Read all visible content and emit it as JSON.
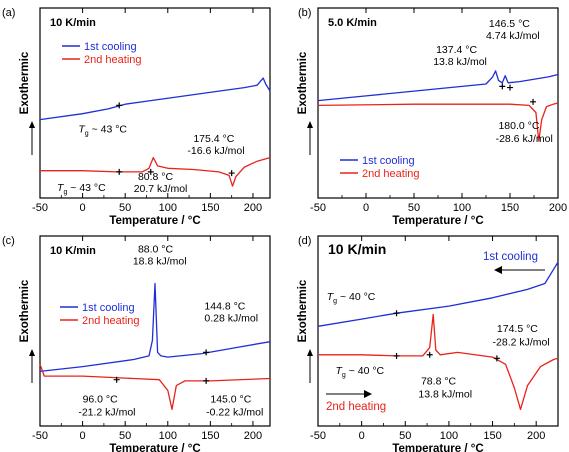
{
  "figure": {
    "panel_letters": [
      "(a)",
      "(b)",
      "(c)",
      "(d)"
    ]
  },
  "chart_data": [
    {
      "type": "line",
      "panel": "(a)",
      "rate_label": "10 K/min",
      "xlabel": "Temperature / °C",
      "ylabel": "Exothermic",
      "xlim": [
        -50,
        220
      ],
      "xticks": [
        -50,
        0,
        50,
        100,
        150,
        200
      ],
      "legend": "top-left",
      "series": [
        {
          "name": "1st cooling",
          "color": "#1f2fd6",
          "x": [
            -50,
            0,
            30,
            50,
            80,
            120,
            160,
            190,
            205,
            212,
            215,
            220
          ],
          "y": [
            3.3,
            3.55,
            3.75,
            3.95,
            4.1,
            4.3,
            4.5,
            4.65,
            4.75,
            5.05,
            4.8,
            4.5
          ]
        },
        {
          "name": "2nd heating",
          "color": "#e8231c",
          "x": [
            -50,
            0,
            40,
            70,
            78,
            83,
            88,
            100,
            130,
            160,
            172,
            176,
            180,
            190,
            205,
            220
          ],
          "y": [
            1.15,
            1.15,
            1.1,
            1.1,
            1.25,
            1.7,
            1.35,
            1.25,
            1.2,
            1.1,
            0.95,
            0.5,
            0.9,
            1.3,
            1.55,
            1.7
          ]
        }
      ],
      "annotations": [
        {
          "text": "T",
          "sub": "g",
          "rest": " ~ 43 °C",
          "x": -5,
          "y": 2.75
        },
        {
          "text": "T",
          "sub": "g",
          "rest": " ~ 43 °C",
          "x": -30,
          "y": 0.3
        },
        {
          "text": "175.4 °C",
          "x": 130,
          "y": 2.35
        },
        {
          "text": "-16.6 kJ/mol",
          "x": 123,
          "y": 1.85
        },
        {
          "text": "80.8 °C",
          "x": 65,
          "y": 0.75
        },
        {
          "text": "20.7 kJ/mol",
          "x": 60,
          "y": 0.25
        }
      ],
      "markers": [
        {
          "x": 43,
          "y": 3.9
        },
        {
          "x": 43,
          "y": 1.1
        },
        {
          "x": 80,
          "y": 1.1
        },
        {
          "x": 175,
          "y": 1.05
        }
      ]
    },
    {
      "type": "line",
      "panel": "(b)",
      "rate_label": "5.0 K/min",
      "xlabel": "Temperature / °C",
      "ylabel": "Exothermic",
      "xlim": [
        -50,
        200
      ],
      "xticks": [
        -50,
        0,
        50,
        100,
        150,
        200
      ],
      "legend": "bottom-left",
      "series": [
        {
          "name": "1st cooling",
          "color": "#1f2fd6",
          "x": [
            -50,
            0,
            50,
            100,
            125,
            132,
            135,
            138,
            142,
            145,
            148,
            160,
            190,
            200
          ],
          "y": [
            4.1,
            4.3,
            4.5,
            4.7,
            4.8,
            5.1,
            5.35,
            4.95,
            4.85,
            5.15,
            4.85,
            4.9,
            5.1,
            5.2
          ]
        },
        {
          "name": "2nd heating",
          "color": "#e8231c",
          "x": [
            -50,
            50,
            100,
            150,
            170,
            177,
            180,
            183,
            188,
            195,
            200
          ],
          "y": [
            3.9,
            3.95,
            3.95,
            3.95,
            3.9,
            3.6,
            2.4,
            3.3,
            3.85,
            3.95,
            4.0
          ]
        }
      ],
      "annotations": [
        {
          "text": "146.5 °C",
          "x": 128,
          "y": 7.2
        },
        {
          "text": "4.74 kJ/mol",
          "x": 125,
          "y": 6.7
        },
        {
          "text": "137.4 °C",
          "x": 73,
          "y": 6.1
        },
        {
          "text": "13.8 kJ/mol",
          "x": 70,
          "y": 5.6
        },
        {
          "text": "180.0 °C",
          "x": 138,
          "y": 2.9
        },
        {
          "text": "-28.6 kJ/mol",
          "x": 135,
          "y": 2.35
        }
      ],
      "markers": [
        {
          "x": 142,
          "y": 4.7
        },
        {
          "x": 150,
          "y": 4.65
        },
        {
          "x": 174,
          "y": 4.05
        }
      ]
    },
    {
      "type": "line",
      "panel": "(c)",
      "rate_label": "10 K/min",
      "xlabel": "Temperature / °C",
      "ylabel": "Exothermic",
      "xlim": [
        -50,
        220
      ],
      "xticks": [
        -50,
        0,
        50,
        100,
        150,
        200
      ],
      "legend": "middle-left",
      "series": [
        {
          "name": "1st cooling",
          "color": "#1f2fd6",
          "x": [
            -50,
            0,
            60,
            78,
            82,
            85,
            88,
            92,
            100,
            140,
            180,
            220
          ],
          "y": [
            2.3,
            2.5,
            2.8,
            2.95,
            3.6,
            6.0,
            3.1,
            2.95,
            2.9,
            3.05,
            3.3,
            3.55
          ]
        },
        {
          "name": "2nd heating",
          "color": "#e8231c",
          "x": [
            -50,
            -45,
            -30,
            0,
            60,
            90,
            100,
            105,
            110,
            120,
            150,
            220
          ],
          "y": [
            2.6,
            2.1,
            2.1,
            2.1,
            2.0,
            1.95,
            1.5,
            0.7,
            1.7,
            1.9,
            1.9,
            2.0
          ]
        }
      ],
      "annotations": [
        {
          "text": "88.0 °C",
          "x": 65,
          "y": 7.3
        },
        {
          "text": "18.8 kJ/mol",
          "x": 59,
          "y": 6.8
        },
        {
          "text": "144.8 °C",
          "x": 143,
          "y": 4.9
        },
        {
          "text": "0.28 kJ/mol",
          "x": 143,
          "y": 4.4
        },
        {
          "text": "96.0 °C",
          "x": 0,
          "y": 1.0
        },
        {
          "text": "-21.2 kJ/mol",
          "x": -5,
          "y": 0.45
        },
        {
          "text": "145.0 °C",
          "x": 150,
          "y": 1.0
        },
        {
          "text": "-0.22 kJ/mol",
          "x": 145,
          "y": 0.45
        }
      ],
      "markers": [
        {
          "x": 145,
          "y": 3.1
        },
        {
          "x": 40,
          "y": 1.95
        },
        {
          "x": 145,
          "y": 1.9
        }
      ]
    },
    {
      "type": "line",
      "panel": "(d)",
      "rate_label": "10 K/min",
      "xlabel": "Temperature / °C",
      "ylabel": "Exothermic",
      "xlim": [
        -50,
        225
      ],
      "xticks": [
        -50,
        0,
        50,
        100,
        150,
        200
      ],
      "legend": "inline",
      "series": [
        {
          "name": "1st cooling",
          "color": "#1f2fd6",
          "arrow": "left",
          "x": [
            -50,
            0,
            40,
            100,
            150,
            190,
            210,
            220,
            225
          ],
          "y": [
            4.2,
            4.5,
            4.75,
            5.05,
            5.4,
            5.75,
            6.0,
            6.6,
            6.9
          ]
        },
        {
          "name": "2nd heating",
          "color": "#e8231c",
          "arrow": "right",
          "x": [
            -50,
            0,
            40,
            70,
            78,
            82,
            85,
            90,
            110,
            150,
            165,
            175,
            182,
            190,
            205,
            220,
            225
          ],
          "y": [
            3.0,
            3.0,
            2.95,
            2.95,
            3.3,
            4.7,
            3.2,
            3.0,
            3.1,
            2.9,
            2.6,
            1.6,
            0.7,
            1.7,
            2.5,
            2.8,
            2.85
          ]
        }
      ],
      "annotations": [
        {
          "text": "T",
          "sub": "g",
          "rest": " ~ 40 °C",
          "x": -40,
          "y": 5.3
        },
        {
          "text": "T",
          "sub": "g",
          "rest": " ~ 40 °C",
          "x": -30,
          "y": 2.2
        },
        {
          "text": "174.5 °C",
          "x": 155,
          "y": 3.95
        },
        {
          "text": "-28.2 kJ/mol",
          "x": 150,
          "y": 3.4
        },
        {
          "text": "78.8 °C",
          "x": 68,
          "y": 1.75
        },
        {
          "text": "13.8 kJ/mol",
          "x": 65,
          "y": 1.2
        }
      ],
      "markers": [
        {
          "x": 40,
          "y": 4.75
        },
        {
          "x": 40,
          "y": 2.95
        },
        {
          "x": 78,
          "y": 3.0
        },
        {
          "x": 155,
          "y": 2.85
        }
      ]
    }
  ]
}
